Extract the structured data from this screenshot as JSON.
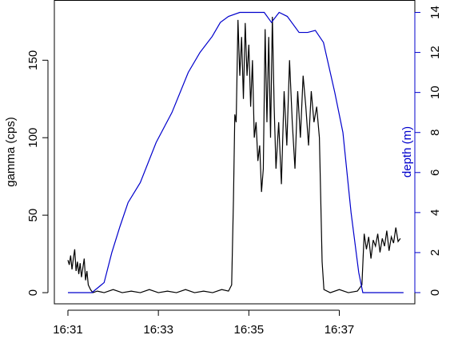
{
  "chart_data": {
    "type": "line",
    "y_label": "gamma (cps)",
    "y2_label": "depth (m)",
    "xlim": [
      30.7,
      38.67
    ],
    "xticks": [
      {
        "value": 31,
        "label": "16:31"
      },
      {
        "value": 33,
        "label": "16:33"
      },
      {
        "value": 35,
        "label": "16:35"
      },
      {
        "value": 37,
        "label": "16:37"
      }
    ],
    "ylim": [
      -7.2,
      188.6
    ],
    "yticks": [
      0,
      50,
      100,
      150
    ],
    "y2lim": [
      -0.56,
      14.6
    ],
    "y2ticks": [
      0,
      2,
      4,
      6,
      8,
      10,
      12,
      14
    ],
    "y2color": "#0000cc",
    "series": [
      {
        "color": "#000000",
        "x": [
          31.0,
          31.03,
          31.06,
          31.09,
          31.12,
          31.15,
          31.18,
          31.21,
          31.24,
          31.27,
          31.3,
          31.33,
          31.36,
          31.39,
          31.42,
          31.45,
          31.5,
          31.55,
          31.65,
          31.8,
          32.0,
          32.2,
          32.4,
          32.6,
          32.8,
          33.0,
          33.2,
          33.4,
          33.6,
          33.8,
          34.0,
          34.2,
          34.4,
          34.55,
          34.62,
          34.66,
          34.69,
          34.72,
          34.76,
          34.8,
          34.84,
          34.88,
          34.92,
          34.96,
          35.0,
          35.04,
          35.08,
          35.12,
          35.16,
          35.2,
          35.24,
          35.28,
          35.32,
          35.36,
          35.4,
          35.44,
          35.48,
          35.52,
          35.56,
          35.6,
          35.66,
          35.72,
          35.78,
          35.84,
          35.9,
          35.96,
          36.02,
          36.08,
          36.14,
          36.2,
          36.26,
          36.32,
          36.38,
          36.44,
          36.5,
          36.56,
          36.62,
          36.66,
          36.8,
          37.0,
          37.2,
          37.4,
          37.5,
          37.55,
          37.6,
          37.65,
          37.7,
          37.75,
          37.8,
          37.85,
          37.9,
          37.95,
          38.0,
          38.05,
          38.1,
          38.15,
          38.2,
          38.25,
          38.3,
          38.35
        ],
        "values": [
          21,
          18,
          24,
          15,
          22,
          28,
          14,
          20,
          12,
          19,
          10,
          16,
          22,
          8,
          14,
          5,
          2,
          0,
          1,
          0,
          2,
          0,
          1,
          0,
          2,
          0,
          1,
          0,
          2,
          0,
          1,
          0,
          2,
          1,
          5,
          60,
          115,
          110,
          176,
          140,
          165,
          125,
          174,
          140,
          160,
          120,
          150,
          100,
          110,
          85,
          95,
          65,
          80,
          170,
          110,
          165,
          100,
          178,
          120,
          80,
          110,
          70,
          130,
          95,
          150,
          110,
          80,
          130,
          100,
          140,
          120,
          95,
          130,
          110,
          120,
          100,
          20,
          2,
          0,
          2,
          0,
          1,
          5,
          38,
          28,
          36,
          22,
          34,
          30,
          38,
          26,
          35,
          30,
          40,
          27,
          36,
          32,
          42,
          33,
          35
        ]
      },
      {
        "color": "#0000cc",
        "axis": "y2",
        "x": [
          31.0,
          31.53,
          31.8,
          31.97,
          32.15,
          32.33,
          32.6,
          32.95,
          33.3,
          33.66,
          33.92,
          34.19,
          34.37,
          34.55,
          34.8,
          35.34,
          35.5,
          35.67,
          35.85,
          36.11,
          36.3,
          36.47,
          36.65,
          36.9,
          37.08,
          37.26,
          37.43,
          37.52,
          38.42
        ],
        "values": [
          0,
          0,
          0.5,
          2,
          3.3,
          4.5,
          5.5,
          7.5,
          9,
          11,
          12,
          12.8,
          13.5,
          13.8,
          14,
          14,
          13.5,
          14,
          13.8,
          13,
          13,
          13.1,
          12.5,
          10,
          8,
          4,
          1,
          0,
          0
        ]
      }
    ]
  }
}
